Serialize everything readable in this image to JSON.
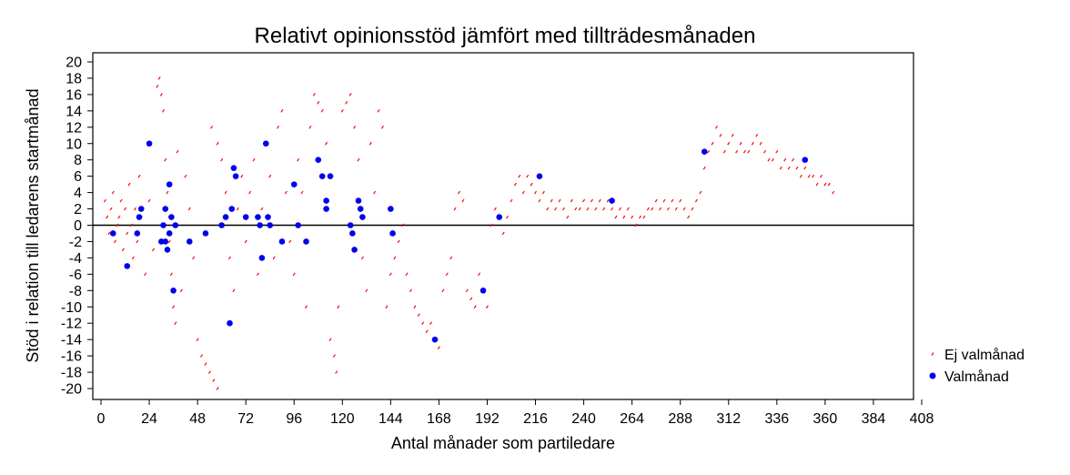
{
  "chart_data": {
    "type": "scatter",
    "title": "Relativt opinionsstöd jämfört med tillträdesmånaden",
    "xlabel": "Antal månader som partiledare",
    "ylabel": "Stöd i relation till ledarens startmånad",
    "xlim": [
      0,
      408
    ],
    "ylim": [
      -20,
      20
    ],
    "xticks": [
      0,
      24,
      48,
      72,
      96,
      120,
      144,
      168,
      192,
      216,
      240,
      264,
      288,
      312,
      336,
      360,
      384,
      408
    ],
    "yticks": [
      -20,
      -18,
      -16,
      -14,
      -12,
      -10,
      -8,
      -6,
      -4,
      -2,
      0,
      2,
      4,
      6,
      8,
      10,
      12,
      14,
      16,
      18,
      20
    ],
    "reference_line_y": 0,
    "legend_position": "right",
    "colors": {
      "ej": "#ff0000",
      "val": "#0000ee",
      "zero_line": "#000000"
    },
    "series": [
      {
        "name": "Ej valmånad",
        "marker": "small-tick",
        "points": [
          [
            2,
            3
          ],
          [
            3,
            1
          ],
          [
            4,
            -1
          ],
          [
            5,
            2
          ],
          [
            6,
            4
          ],
          [
            7,
            -2
          ],
          [
            8,
            0
          ],
          [
            9,
            1
          ],
          [
            10,
            3
          ],
          [
            11,
            -3
          ],
          [
            12,
            2
          ],
          [
            13,
            -1
          ],
          [
            14,
            5
          ],
          [
            15,
            0
          ],
          [
            16,
            -4
          ],
          [
            17,
            2
          ],
          [
            18,
            -2
          ],
          [
            19,
            6
          ],
          [
            20,
            1
          ],
          [
            22,
            -6
          ],
          [
            24,
            3
          ],
          [
            26,
            -3
          ],
          [
            28,
            17
          ],
          [
            29,
            18
          ],
          [
            30,
            16
          ],
          [
            31,
            14
          ],
          [
            32,
            8
          ],
          [
            33,
            4
          ],
          [
            34,
            -2
          ],
          [
            35,
            -6
          ],
          [
            36,
            -10
          ],
          [
            37,
            -12
          ],
          [
            38,
            9
          ],
          [
            40,
            -8
          ],
          [
            42,
            6
          ],
          [
            44,
            2
          ],
          [
            46,
            -4
          ],
          [
            48,
            -14
          ],
          [
            50,
            -16
          ],
          [
            52,
            -17
          ],
          [
            54,
            -18
          ],
          [
            56,
            -19
          ],
          [
            58,
            -20
          ],
          [
            55,
            12
          ],
          [
            58,
            10
          ],
          [
            60,
            8
          ],
          [
            62,
            4
          ],
          [
            64,
            -4
          ],
          [
            66,
            -8
          ],
          [
            68,
            2
          ],
          [
            70,
            6
          ],
          [
            72,
            -2
          ],
          [
            74,
            4
          ],
          [
            76,
            8
          ],
          [
            78,
            -6
          ],
          [
            80,
            2
          ],
          [
            82,
            10
          ],
          [
            84,
            6
          ],
          [
            86,
            -4
          ],
          [
            88,
            12
          ],
          [
            90,
            14
          ],
          [
            92,
            4
          ],
          [
            94,
            -2
          ],
          [
            96,
            -6
          ],
          [
            98,
            8
          ],
          [
            100,
            4
          ],
          [
            102,
            -10
          ],
          [
            104,
            12
          ],
          [
            106,
            16
          ],
          [
            108,
            15
          ],
          [
            110,
            14
          ],
          [
            112,
            10
          ],
          [
            114,
            -14
          ],
          [
            116,
            -16
          ],
          [
            117,
            -18
          ],
          [
            118,
            -10
          ],
          [
            120,
            14
          ],
          [
            122,
            15
          ],
          [
            124,
            16
          ],
          [
            126,
            12
          ],
          [
            128,
            8
          ],
          [
            130,
            -4
          ],
          [
            132,
            -8
          ],
          [
            134,
            10
          ],
          [
            136,
            4
          ],
          [
            138,
            14
          ],
          [
            140,
            12
          ],
          [
            142,
            -10
          ],
          [
            144,
            -6
          ],
          [
            146,
            -4
          ],
          [
            148,
            -2
          ],
          [
            150,
            0
          ],
          [
            152,
            -6
          ],
          [
            154,
            -8
          ],
          [
            156,
            -10
          ],
          [
            158,
            -11
          ],
          [
            160,
            -12
          ],
          [
            162,
            -13
          ],
          [
            164,
            -12
          ],
          [
            166,
            -14
          ],
          [
            168,
            -15
          ],
          [
            170,
            -8
          ],
          [
            172,
            -6
          ],
          [
            174,
            -4
          ],
          [
            176,
            2
          ],
          [
            178,
            4
          ],
          [
            180,
            3
          ],
          [
            182,
            -8
          ],
          [
            184,
            -9
          ],
          [
            186,
            -10
          ],
          [
            188,
            -6
          ],
          [
            190,
            -8
          ],
          [
            192,
            -10
          ],
          [
            194,
            0
          ],
          [
            196,
            2
          ],
          [
            198,
            1
          ],
          [
            200,
            -1
          ],
          [
            202,
            1
          ],
          [
            204,
            3
          ],
          [
            206,
            5
          ],
          [
            208,
            6
          ],
          [
            210,
            4
          ],
          [
            212,
            6
          ],
          [
            214,
            5
          ],
          [
            216,
            4
          ],
          [
            218,
            3
          ],
          [
            220,
            4
          ],
          [
            222,
            2
          ],
          [
            224,
            3
          ],
          [
            226,
            2
          ],
          [
            228,
            3
          ],
          [
            230,
            2
          ],
          [
            232,
            1
          ],
          [
            234,
            3
          ],
          [
            236,
            2
          ],
          [
            238,
            2
          ],
          [
            240,
            3
          ],
          [
            242,
            2
          ],
          [
            244,
            3
          ],
          [
            246,
            2
          ],
          [
            248,
            3
          ],
          [
            250,
            2
          ],
          [
            252,
            3
          ],
          [
            254,
            2
          ],
          [
            256,
            1
          ],
          [
            258,
            2
          ],
          [
            260,
            1
          ],
          [
            262,
            2
          ],
          [
            264,
            1
          ],
          [
            266,
            0
          ],
          [
            268,
            1
          ],
          [
            270,
            1
          ],
          [
            272,
            2
          ],
          [
            274,
            2
          ],
          [
            276,
            3
          ],
          [
            278,
            2
          ],
          [
            280,
            3
          ],
          [
            282,
            2
          ],
          [
            284,
            3
          ],
          [
            286,
            2
          ],
          [
            288,
            3
          ],
          [
            290,
            2
          ],
          [
            292,
            1
          ],
          [
            294,
            2
          ],
          [
            296,
            3
          ],
          [
            298,
            4
          ],
          [
            300,
            7
          ],
          [
            302,
            9
          ],
          [
            304,
            10
          ],
          [
            306,
            12
          ],
          [
            308,
            11
          ],
          [
            310,
            9
          ],
          [
            312,
            10
          ],
          [
            314,
            11
          ],
          [
            316,
            9
          ],
          [
            318,
            10
          ],
          [
            320,
            9
          ],
          [
            322,
            9
          ],
          [
            324,
            10
          ],
          [
            326,
            11
          ],
          [
            328,
            10
          ],
          [
            330,
            9
          ],
          [
            332,
            8
          ],
          [
            334,
            8
          ],
          [
            336,
            9
          ],
          [
            338,
            7
          ],
          [
            340,
            8
          ],
          [
            342,
            7
          ],
          [
            344,
            8
          ],
          [
            346,
            7
          ],
          [
            348,
            6
          ],
          [
            350,
            7
          ],
          [
            352,
            6
          ],
          [
            354,
            6
          ],
          [
            356,
            5
          ],
          [
            358,
            6
          ],
          [
            360,
            5
          ],
          [
            362,
            5
          ],
          [
            364,
            4
          ]
        ]
      },
      {
        "name": "Valmånad",
        "marker": "dot",
        "points": [
          [
            6,
            -1
          ],
          [
            13,
            -5
          ],
          [
            18,
            -1
          ],
          [
            19,
            1
          ],
          [
            20,
            2
          ],
          [
            24,
            10
          ],
          [
            30,
            -2
          ],
          [
            31,
            0
          ],
          [
            32,
            2
          ],
          [
            32,
            -2
          ],
          [
            33,
            -3
          ],
          [
            34,
            5
          ],
          [
            34,
            -1
          ],
          [
            35,
            1
          ],
          [
            36,
            -8
          ],
          [
            37,
            0
          ],
          [
            44,
            -2
          ],
          [
            52,
            -1
          ],
          [
            60,
            0
          ],
          [
            62,
            1
          ],
          [
            65,
            2
          ],
          [
            66,
            7
          ],
          [
            67,
            6
          ],
          [
            64,
            -12
          ],
          [
            72,
            1
          ],
          [
            78,
            1
          ],
          [
            79,
            0
          ],
          [
            80,
            -4
          ],
          [
            82,
            10
          ],
          [
            83,
            1
          ],
          [
            84,
            0
          ],
          [
            90,
            -2
          ],
          [
            96,
            5
          ],
          [
            98,
            0
          ],
          [
            102,
            -2
          ],
          [
            108,
            8
          ],
          [
            110,
            6
          ],
          [
            112,
            3
          ],
          [
            112,
            2
          ],
          [
            114,
            6
          ],
          [
            124,
            0
          ],
          [
            125,
            -1
          ],
          [
            126,
            -3
          ],
          [
            128,
            3
          ],
          [
            129,
            2
          ],
          [
            130,
            1
          ],
          [
            144,
            2
          ],
          [
            145,
            -1
          ],
          [
            166,
            -14
          ],
          [
            190,
            -8
          ],
          [
            198,
            1
          ],
          [
            218,
            6
          ],
          [
            254,
            3
          ],
          [
            300,
            9
          ],
          [
            350,
            8
          ]
        ]
      }
    ]
  }
}
